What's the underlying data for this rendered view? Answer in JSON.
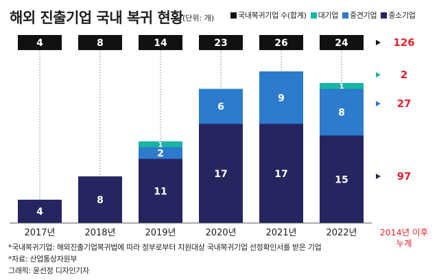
{
  "title": "해외 진출기업 국내 복귀 현황",
  "unit": "(단위: 개)",
  "colors": {
    "total_box": "#111111",
    "large": "#19b4a3",
    "mid": "#2c7bcc",
    "small": "#262560",
    "accent_red": "#e5202b"
  },
  "chart_data": {
    "type": "bar",
    "stacked": true,
    "categories": [
      "2017년",
      "2018년",
      "2019년",
      "2020년",
      "2021년",
      "2022년"
    ],
    "series": [
      {
        "name": "중소기업",
        "values": [
          4,
          8,
          11,
          17,
          17,
          15
        ]
      },
      {
        "name": "중견기업",
        "values": [
          0,
          0,
          2,
          6,
          9,
          8
        ]
      },
      {
        "name": "대기업",
        "values": [
          0,
          0,
          1,
          0,
          0,
          1
        ]
      }
    ],
    "totals_series_name": "국내복귀기업 수(합계)",
    "totals": [
      4,
      8,
      14,
      23,
      26,
      24
    ],
    "legend": [
      {
        "name": "국내복귀기업 수(합계)",
        "color": "#111111"
      },
      {
        "name": "대기업",
        "color": "#19b4a3"
      },
      {
        "name": "중견기업",
        "color": "#2c7bcc"
      },
      {
        "name": "중소기업",
        "color": "#262560"
      }
    ],
    "legend_position": "top-right",
    "cumulative": {
      "label": [
        "2014년 이후",
        "누계"
      ],
      "total": "126",
      "large": "2",
      "mid": "27",
      "small": "97"
    },
    "grid": false,
    "ylim": [
      0,
      28
    ]
  },
  "footnotes": [
    "*국내복귀기업: 해외진출기업복귀법에 따라 정부로부터 지원대상 국내복귀기업 선정확인서를 받은 기업",
    "*자료: 산업통상자원부",
    "그래픽: 윤선정 디자인기자"
  ]
}
